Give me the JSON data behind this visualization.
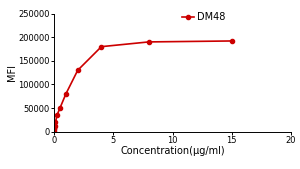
{
  "x": [
    0.00781,
    0.01563,
    0.03125,
    0.0625,
    0.125,
    0.25,
    0.5,
    1.0,
    2.0,
    4.0,
    8.0,
    15.0
  ],
  "y": [
    2000,
    5000,
    8000,
    12000,
    20000,
    35000,
    50000,
    80000,
    130000,
    180000,
    190000,
    192000
  ],
  "line_color": "#cc0000",
  "marker": "o",
  "marker_size": 3,
  "legend_label": "DM48",
  "xlabel": "Concentration(μg/ml)",
  "ylabel": "MFI",
  "xlim": [
    0,
    20
  ],
  "ylim": [
    0,
    250000
  ],
  "yticks": [
    0,
    50000,
    100000,
    150000,
    200000,
    250000
  ],
  "xticks": [
    0,
    5,
    10,
    15,
    20
  ],
  "background_color": "#ffffff",
  "axis_font_size": 7,
  "tick_font_size": 6,
  "legend_fontsize": 7
}
